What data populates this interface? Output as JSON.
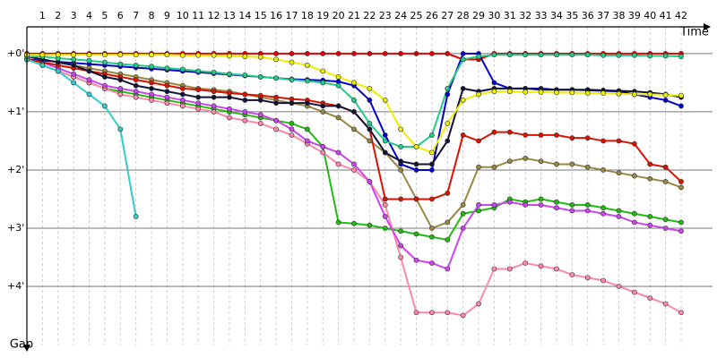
{
  "chart_data": {
    "type": "line",
    "x_label": "Time",
    "y_label": "Gap",
    "x": [
      0,
      1,
      2,
      3,
      4,
      5,
      6,
      7,
      8,
      9,
      10,
      11,
      12,
      13,
      14,
      15,
      16,
      17,
      18,
      19,
      20,
      21,
      22,
      23,
      24,
      25,
      26,
      27,
      28,
      29,
      30,
      31,
      32,
      33,
      34,
      35,
      36,
      37,
      38,
      39,
      40,
      41,
      42
    ],
    "xlim": [
      0,
      42
    ],
    "xticks": [
      1,
      2,
      3,
      4,
      5,
      6,
      7,
      8,
      9,
      10,
      11,
      12,
      13,
      14,
      15,
      16,
      17,
      18,
      19,
      20,
      21,
      22,
      23,
      24,
      25,
      26,
      27,
      28,
      29,
      30,
      31,
      32,
      33,
      34,
      35,
      36,
      37,
      38,
      39,
      40,
      41,
      42
    ],
    "ylim": [
      -0.46,
      5.0
    ],
    "yticks": [
      {
        "value": 0,
        "label": "+0'"
      },
      {
        "value": 1,
        "label": "+1'"
      },
      {
        "value": 2,
        "label": "+2'"
      },
      {
        "value": 3,
        "label": "+3'"
      },
      {
        "value": 4,
        "label": "+4'"
      }
    ],
    "y_inverted": true,
    "grid": true,
    "series": [
      {
        "color": "#e00000",
        "values": [
          0,
          0,
          0,
          0,
          0,
          0,
          0,
          0,
          0,
          0,
          0,
          0,
          0,
          0,
          0,
          0,
          0,
          0,
          0,
          0,
          0,
          0,
          0,
          0,
          0,
          0,
          0,
          0,
          0.1,
          0.1,
          0,
          0,
          0,
          0,
          0,
          0,
          0,
          0,
          0,
          0,
          0,
          0,
          0
        ]
      },
      {
        "color": "#0000cc",
        "values": [
          0.1,
          0.12,
          0.14,
          0.16,
          0.18,
          0.2,
          0.22,
          0.24,
          0.26,
          0.28,
          0.3,
          0.32,
          0.34,
          0.36,
          0.38,
          0.4,
          0.42,
          0.44,
          0.45,
          0.46,
          0.48,
          0.55,
          0.8,
          1.4,
          1.9,
          2.0,
          2.0,
          0.7,
          0,
          0,
          0.5,
          0.6,
          0.6,
          0.6,
          0.62,
          0.62,
          0.63,
          0.64,
          0.65,
          0.7,
          0.75,
          0.8,
          0.9
        ]
      },
      {
        "color": "#22bb11",
        "values": [
          0.1,
          0.2,
          0.3,
          0.4,
          0.5,
          0.6,
          0.65,
          0.7,
          0.75,
          0.8,
          0.85,
          0.9,
          0.95,
          1.0,
          1.05,
          1.1,
          1.15,
          1.2,
          1.3,
          1.6,
          2.9,
          2.92,
          2.95,
          3.0,
          3.05,
          3.1,
          3.15,
          3.2,
          2.75,
          2.7,
          2.65,
          2.5,
          2.55,
          2.5,
          2.55,
          2.6,
          2.6,
          2.65,
          2.7,
          2.75,
          2.8,
          2.85,
          2.9
        ]
      },
      {
        "color": "#ff88aa",
        "values": [
          0.1,
          0.2,
          0.3,
          0.4,
          0.5,
          0.6,
          0.7,
          0.75,
          0.8,
          0.85,
          0.9,
          0.95,
          1.0,
          1.1,
          1.15,
          1.2,
          1.3,
          1.4,
          1.55,
          1.7,
          1.9,
          2.0,
          2.2,
          2.6,
          3.5,
          4.45,
          4.45,
          4.45,
          4.5,
          4.3,
          3.7,
          3.7,
          3.6,
          3.65,
          3.7,
          3.8,
          3.85,
          3.9,
          4.0,
          4.1,
          4.2,
          4.3,
          4.45
        ]
      },
      {
        "color": "#cc44ee",
        "values": [
          0.1,
          0.15,
          0.25,
          0.35,
          0.45,
          0.55,
          0.6,
          0.65,
          0.7,
          0.75,
          0.8,
          0.85,
          0.9,
          0.95,
          1.0,
          1.05,
          1.15,
          1.3,
          1.5,
          1.6,
          1.7,
          1.9,
          2.2,
          2.8,
          3.3,
          3.55,
          3.6,
          3.7,
          3.0,
          2.6,
          2.6,
          2.55,
          2.6,
          2.6,
          2.65,
          2.7,
          2.7,
          2.75,
          2.8,
          2.9,
          2.95,
          3.0,
          3.05
        ]
      },
      {
        "color": "#998844",
        "values": [
          0.05,
          0.1,
          0.15,
          0.2,
          0.25,
          0.3,
          0.35,
          0.4,
          0.45,
          0.5,
          0.55,
          0.6,
          0.62,
          0.65,
          0.7,
          0.75,
          0.8,
          0.85,
          0.9,
          1.0,
          1.1,
          1.3,
          1.5,
          1.7,
          2.0,
          2.5,
          3.0,
          2.9,
          2.6,
          1.95,
          1.95,
          1.85,
          1.8,
          1.85,
          1.9,
          1.9,
          1.95,
          2.0,
          2.05,
          2.1,
          2.15,
          2.2,
          2.3
        ]
      },
      {
        "color": "#dd1100",
        "values": [
          0.1,
          0.15,
          0.2,
          0.25,
          0.3,
          0.35,
          0.4,
          0.45,
          0.5,
          0.55,
          0.6,
          0.62,
          0.65,
          0.68,
          0.7,
          0.72,
          0.75,
          0.78,
          0.8,
          0.85,
          0.9,
          1.0,
          1.3,
          2.5,
          2.5,
          2.5,
          2.5,
          2.4,
          1.4,
          1.5,
          1.35,
          1.35,
          1.4,
          1.4,
          1.4,
          1.45,
          1.45,
          1.5,
          1.5,
          1.55,
          1.9,
          1.95,
          2.2
        ]
      },
      {
        "color": "#33cccc",
        "values": [
          0.1,
          0.2,
          0.3,
          0.5,
          0.7,
          0.9,
          1.3,
          2.8,
          null,
          null,
          null,
          null,
          null,
          null,
          null,
          null,
          null,
          null,
          null,
          null,
          null,
          null,
          null,
          null,
          null,
          null,
          null,
          null,
          null,
          null,
          null,
          null,
          null,
          null,
          null,
          null,
          null,
          null,
          null,
          null,
          null,
          null,
          null
        ]
      },
      {
        "color": "#111133",
        "values": [
          0.05,
          0.1,
          0.15,
          0.2,
          0.3,
          0.4,
          0.45,
          0.55,
          0.6,
          0.65,
          0.7,
          0.75,
          0.75,
          0.75,
          0.8,
          0.8,
          0.85,
          0.85,
          0.85,
          0.9,
          0.9,
          1.0,
          1.3,
          1.7,
          1.85,
          1.9,
          1.9,
          1.5,
          0.6,
          0.65,
          0.6,
          0.6,
          0.6,
          0.62,
          0.62,
          0.62,
          0.62,
          0.63,
          0.64,
          0.65,
          0.67,
          0.7,
          0.75
        ]
      },
      {
        "color": "#22cc88",
        "values": [
          0.05,
          0.05,
          0.08,
          0.1,
          0.12,
          0.15,
          0.18,
          0.2,
          0.22,
          0.25,
          0.27,
          0.3,
          0.32,
          0.35,
          0.37,
          0.4,
          0.42,
          0.45,
          0.47,
          0.5,
          0.55,
          0.8,
          1.2,
          1.5,
          1.6,
          1.6,
          1.4,
          0.6,
          0.1,
          0.05,
          0.02,
          0.02,
          0.02,
          0.02,
          0.02,
          0.02,
          0.02,
          0.03,
          0.03,
          0.03,
          0.04,
          0.04,
          0.05
        ]
      },
      {
        "color": "#eeee00",
        "values": [
          0.02,
          0.02,
          0.02,
          0.02,
          0.02,
          0.02,
          0.02,
          0.02,
          0.02,
          0.02,
          0.03,
          0.03,
          0.03,
          0.04,
          0.05,
          0.06,
          0.1,
          0.15,
          0.2,
          0.3,
          0.4,
          0.5,
          0.6,
          0.8,
          1.3,
          1.6,
          1.7,
          1.2,
          0.8,
          0.7,
          0.65,
          0.65,
          0.66,
          0.66,
          0.67,
          0.67,
          0.68,
          0.68,
          0.69,
          0.7,
          0.7,
          0.71,
          0.72
        ]
      }
    ]
  }
}
